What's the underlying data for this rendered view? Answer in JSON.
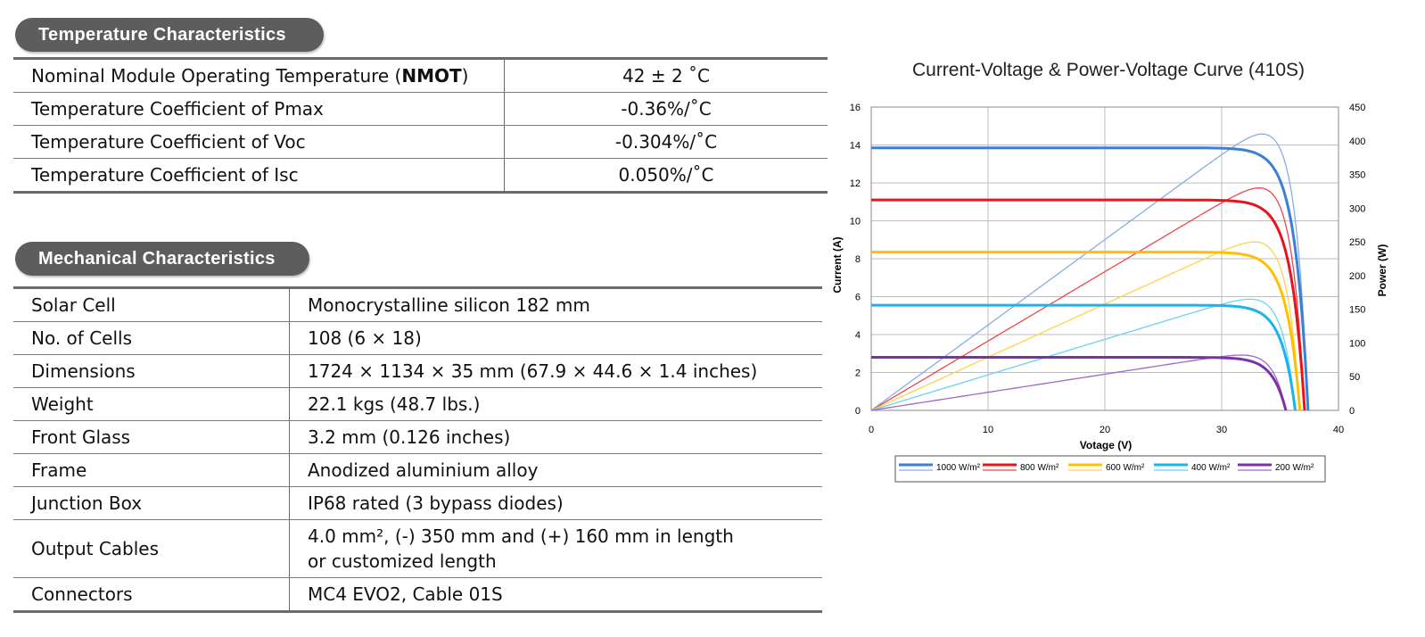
{
  "temperature": {
    "heading": "Temperature  Characteristics",
    "rows": [
      {
        "label_pre": "Nominal Module Operating Temperature (",
        "label_bold": "NMOT",
        "label_post": ")",
        "value": "42 ± 2 ˚C"
      },
      {
        "label": "Temperature Coefficient of Pmax",
        "value": "-0.36%/˚C"
      },
      {
        "label": "Temperature Coefficient of Voc",
        "value": "-0.304%/˚C"
      },
      {
        "label": "Temperature Coefficient of Isc",
        "value": "0.050%/˚C"
      }
    ]
  },
  "mechanical": {
    "heading": "Mechanical  Characteristics",
    "rows": [
      {
        "label": "Solar Cell",
        "value": "Monocrystalline silicon 182 mm"
      },
      {
        "label": "No. of Cells",
        "value": "108 (6 × 18)"
      },
      {
        "label": "Dimensions",
        "value": "1724 × 1134 × 35 mm (67.9 × 44.6 × 1.4 inches)"
      },
      {
        "label": "Weight",
        "value": "22.1 kgs  (48.7 lbs.)"
      },
      {
        "label": "Front Glass",
        "value": "3.2 mm (0.126 inches)"
      },
      {
        "label": "Frame",
        "value": "Anodized aluminium alloy"
      },
      {
        "label": "Junction Box",
        "value": "IP68 rated (3 bypass diodes)"
      },
      {
        "label": "Output Cables",
        "value_line1": "4.0 mm²,  (-) 350 mm and (+) 160 mm in length",
        "value_line2": "or customized length"
      },
      {
        "label": "Connectors",
        "value": "MC4 EVO2, Cable 01S"
      }
    ]
  },
  "chart_data": {
    "type": "line",
    "title": "Current-Voltage & Power-Voltage Curve (410S)",
    "xlabel": "Votage (V)",
    "ylabel": "Current (A)",
    "y2label": "Power (W)",
    "xlim": [
      0,
      40
    ],
    "ylim": [
      0,
      16
    ],
    "y2lim": [
      0,
      450
    ],
    "xticks": [
      "0",
      "10",
      "20",
      "30",
      "40"
    ],
    "yticks": [
      "0",
      "2",
      "4",
      "6",
      "8",
      "10",
      "12",
      "14",
      "16"
    ],
    "y2ticks": [
      "0",
      "50",
      "100",
      "150",
      "200",
      "250",
      "300",
      "350",
      "400",
      "450"
    ],
    "grid": true,
    "legend_position": "bottom",
    "series": [
      {
        "name": "1000 W/m²",
        "color": "#3b7fd6",
        "pcolor": "#86aee6",
        "isc": 13.85,
        "voc": 37.4,
        "pmax": 410,
        "vmp": 31.2
      },
      {
        "name": "800 W/m²",
        "color": "#e8141c",
        "pcolor": "#f0454b",
        "isc": 11.1,
        "voc": 37.1,
        "pmax": 330,
        "vmp": 31.4
      },
      {
        "name": "600 W/m²",
        "color": "#ffc000",
        "pcolor": "#ffd24d",
        "isc": 8.35,
        "voc": 36.7,
        "pmax": 250,
        "vmp": 31.4
      },
      {
        "name": "400 W/m²",
        "color": "#19b4ec",
        "pcolor": "#6fd0f4",
        "isc": 5.55,
        "voc": 36.3,
        "pmax": 165,
        "vmp": 31.2
      },
      {
        "name": "200 W/m²",
        "color": "#7b32a8",
        "pcolor": "#9e69c4",
        "isc": 2.8,
        "voc": 35.5,
        "pmax": 82,
        "vmp": 31.0
      }
    ]
  }
}
